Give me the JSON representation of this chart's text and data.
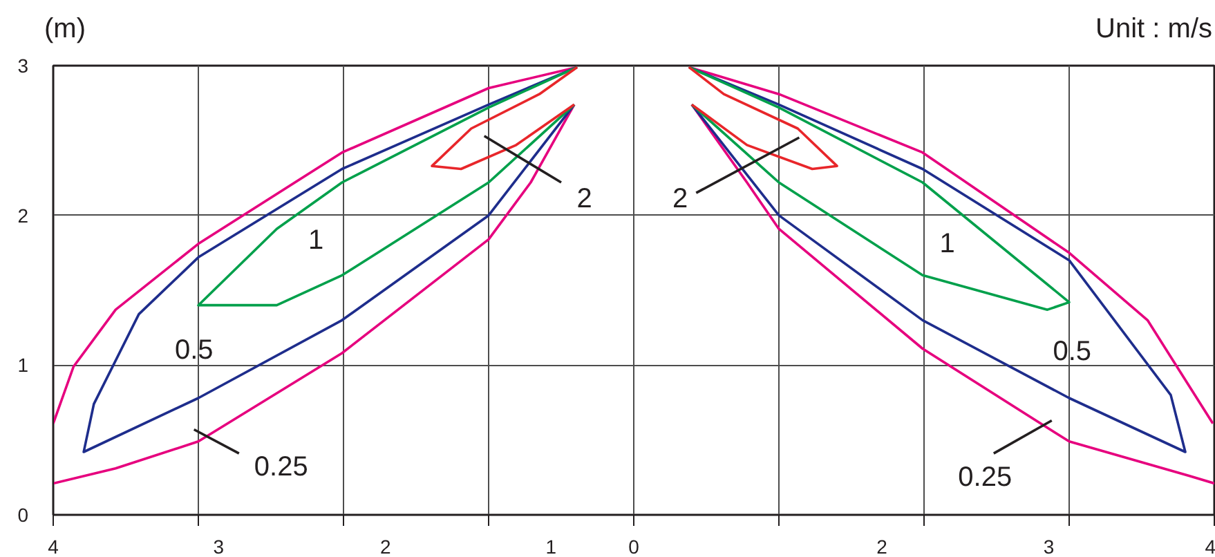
{
  "chart_data": {
    "type": "line",
    "ylabel": "(m)",
    "annotations": [
      "Unit : m/s",
      "2",
      "2",
      "1",
      "1",
      "0.5",
      "0.5",
      "0.25",
      "0.25"
    ],
    "xlim": [
      -4,
      4
    ],
    "ylim": [
      0,
      3
    ],
    "xticks": [
      {
        "value": -4,
        "label": null
      },
      {
        "value": -3,
        "label": null
      },
      {
        "value": -2,
        "label": null
      },
      {
        "value": -1,
        "label": null
      },
      {
        "value": 0,
        "label": null
      },
      {
        "value": 1,
        "label": null
      },
      {
        "value": 2,
        "label": null
      },
      {
        "value": 3,
        "label": null
      },
      {
        "value": 4,
        "label": null
      },
      {
        "value": -4,
        "label": "4"
      },
      {
        "value": -2.86,
        "label": "3"
      },
      {
        "value": -1.71,
        "label": "2"
      },
      {
        "value": -0.57,
        "label": "1"
      },
      {
        "value": 0,
        "label": "0"
      },
      {
        "value": 1.71,
        "label": "2"
      },
      {
        "value": 2.86,
        "label": "3"
      },
      {
        "value": 4,
        "label": "4"
      }
    ],
    "yticks": [
      0,
      1,
      2,
      3
    ],
    "grid": true,
    "series": [
      {
        "color": "#e6007e",
        "x": [
          -0.39,
          -1.0,
          -2.01,
          -3.0,
          -3.57,
          -3.86,
          -4.0,
          null,
          -4.0,
          -3.57,
          -3.0,
          -2.01,
          -1.0,
          -0.71,
          -0.41
        ],
        "values": [
          2.99,
          2.85,
          2.42,
          1.81,
          1.37,
          0.99,
          0.61,
          null,
          0.21,
          0.31,
          0.49,
          1.08,
          1.84,
          2.22,
          2.74
        ]
      },
      {
        "color": "#1e2d8c",
        "x": [
          -0.39,
          -1.0,
          -2.01,
          -3.0,
          -3.41,
          -3.72,
          -3.79,
          -3.0,
          -2.01,
          -1.0,
          -0.41
        ],
        "values": [
          2.99,
          2.74,
          2.31,
          1.72,
          1.34,
          0.74,
          0.42,
          0.78,
          1.3,
          2.0,
          2.74
        ]
      },
      {
        "color": "#00a04b",
        "x": [
          -0.39,
          -1.0,
          -2.01,
          -2.46,
          -3.0,
          -2.46,
          -2.01,
          -1.0,
          -0.41
        ],
        "values": [
          2.99,
          2.72,
          2.22,
          1.91,
          1.4,
          1.4,
          1.6,
          2.22,
          2.74
        ]
      },
      {
        "color": "#e8262a",
        "x": [
          -0.39,
          -0.65,
          -1.12,
          -1.39,
          -1.19,
          -0.81,
          -0.41
        ],
        "values": [
          2.99,
          2.81,
          2.58,
          2.33,
          2.31,
          2.47,
          2.74
        ]
      },
      {
        "color": "#e6007e",
        "x": [
          0.38,
          1.0,
          1.99,
          3.0,
          3.54,
          3.99,
          null,
          4.0,
          3.83,
          3.0,
          1.99,
          1.0,
          0.78,
          0.4
        ],
        "values": [
          2.99,
          2.81,
          2.42,
          1.75,
          1.3,
          0.61,
          null,
          0.21,
          0.26,
          0.49,
          1.11,
          1.91,
          2.22,
          2.74
        ]
      },
      {
        "color": "#1e2d8c",
        "x": [
          0.38,
          1.0,
          1.99,
          3.0,
          3.7,
          3.8,
          3.0,
          1.99,
          1.0,
          0.4
        ],
        "values": [
          2.99,
          2.74,
          2.31,
          1.7,
          0.8,
          0.42,
          0.78,
          1.3,
          2.0,
          2.74
        ]
      },
      {
        "color": "#00a04b",
        "x": [
          0.38,
          1.0,
          1.99,
          3.0,
          2.85,
          1.99,
          1.0,
          0.4
        ],
        "values": [
          2.99,
          2.72,
          2.22,
          1.42,
          1.37,
          1.6,
          2.22,
          2.74
        ]
      },
      {
        "color": "#e8262a",
        "x": [
          0.38,
          0.62,
          1.13,
          1.4,
          1.23,
          0.78,
          0.4
        ],
        "values": [
          2.99,
          2.81,
          2.58,
          2.33,
          2.31,
          2.47,
          2.74
        ]
      },
      {
        "color": "#231f20",
        "x": [
          -1.03,
          -0.5
        ],
        "values": [
          2.53,
          2.22
        ]
      },
      {
        "color": "#231f20",
        "x": [
          1.14,
          0.43
        ],
        "values": [
          2.52,
          2.15
        ]
      },
      {
        "color": "#231f20",
        "x": [
          -3.03,
          -2.72
        ],
        "values": [
          0.57,
          0.41
        ]
      },
      {
        "color": "#231f20",
        "x": [
          2.88,
          2.48
        ],
        "values": [
          0.63,
          0.41
        ]
      }
    ]
  }
}
